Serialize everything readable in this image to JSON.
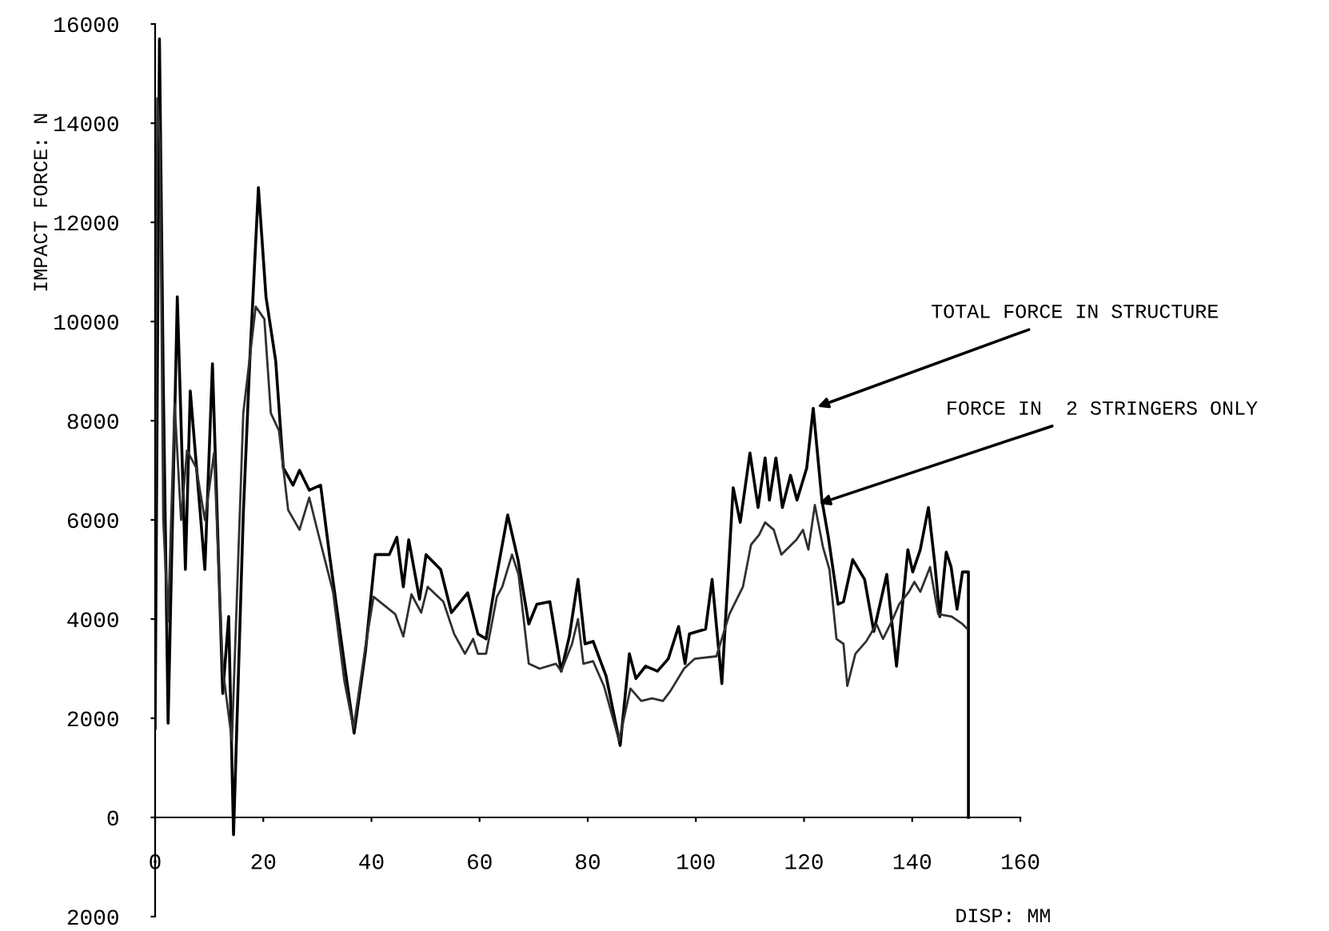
{
  "chart_data": {
    "type": "line",
    "xlabel": "DISP: MM",
    "ylabel": "IMPACT FORCE: N",
    "xlim": [
      0,
      160
    ],
    "ylim": [
      -2000,
      16000
    ],
    "xticks": [
      0,
      20,
      40,
      60,
      80,
      100,
      120,
      140,
      160
    ],
    "yticks": [
      {
        "value": -2000,
        "label": "2000"
      },
      0,
      2000,
      4000,
      6000,
      8000,
      10000,
      12000,
      14000,
      16000
    ],
    "legend": false,
    "marker": "none",
    "line_style": "solid",
    "series": [
      {
        "color": "#000000",
        "x": [
          0,
          0.8,
          1.5,
          2.4,
          4.1,
          5.6,
          6.5,
          9.2,
          10.6,
          12.5,
          13.6,
          14.5,
          16.3,
          17.5,
          19.1,
          20.5,
          22.3,
          23.7,
          25.5,
          26.7,
          28.5,
          30.6,
          32.3,
          35,
          36.8,
          38.9,
          40.7,
          43.3,
          44.7,
          45.9,
          46.9,
          48.9,
          50.1,
          52.8,
          54.8,
          57.8,
          59.7,
          61.2,
          62.7,
          65.2,
          67.1,
          69.1,
          70.6,
          73,
          75.1,
          76.6,
          78.2,
          79.5,
          81,
          83.4,
          86,
          87.7,
          88.9,
          90.7,
          92.9,
          94.9,
          96.8,
          98,
          98.8,
          101.8,
          103,
          104.8,
          106.9,
          108.2,
          110,
          111.5,
          112.8,
          113.6,
          114.8,
          116,
          117.5,
          118.7,
          120.5,
          121.7,
          123.3,
          124.5,
          126.3,
          127.3,
          129,
          131.2,
          132.9,
          135.3,
          137.1,
          139.2,
          140.1,
          141.5,
          143,
          144.2,
          145.1,
          146.3,
          147.2,
          148.3,
          149.3,
          150.4,
          150.4
        ],
        "values": [
          1800,
          15700,
          8850,
          1900,
          10500,
          5000,
          8600,
          5000,
          9150,
          2500,
          4050,
          -350,
          6100,
          9200,
          12700,
          10500,
          9200,
          7050,
          6700,
          7000,
          6600,
          6700,
          5250,
          3100,
          1700,
          3350,
          5300,
          5300,
          5650,
          4650,
          5600,
          4400,
          5300,
          5000,
          4130,
          4530,
          3700,
          3600,
          4600,
          6100,
          5200,
          3900,
          4300,
          4350,
          2950,
          3650,
          4800,
          3500,
          3550,
          2850,
          1450,
          3300,
          2800,
          3050,
          2950,
          3200,
          3850,
          3100,
          3700,
          3800,
          4800,
          2700,
          6650,
          5950,
          7350,
          6250,
          7250,
          6400,
          7250,
          6250,
          6900,
          6400,
          7050,
          8250,
          6400,
          5650,
          4300,
          4350,
          5200,
          4800,
          3750,
          4900,
          3050,
          5400,
          4950,
          5400,
          6250,
          5100,
          4050,
          5350,
          5050,
          4200,
          4950,
          4950,
          0
        ]
      },
      {
        "color": "#303030",
        "x": [
          0,
          0.4,
          0.9,
          1.5,
          2.4,
          3.6,
          4.8,
          5.9,
          7.6,
          9.2,
          10.9,
          12.5,
          14.2,
          16.3,
          18.6,
          20.2,
          21.4,
          22.9,
          24.6,
          26.7,
          28.5,
          30.1,
          32.9,
          35,
          36.7,
          38.9,
          40.4,
          44.4,
          45.9,
          47.4,
          49.2,
          50.4,
          53.3,
          55.3,
          57.3,
          58.8,
          59.7,
          61.2,
          63.2,
          64.2,
          66,
          67.2,
          69.1,
          71.1,
          74.1,
          75.1,
          77.1,
          78.2,
          79.2,
          81,
          83,
          85.8,
          87.9,
          89.9,
          91.9,
          93.9,
          95.3,
          97.8,
          99.8,
          103.8,
          106.2,
          108.7,
          110.2,
          111.7,
          112.8,
          114.4,
          115.8,
          118.6,
          119.8,
          120.8,
          122,
          123.5,
          124.7,
          126,
          127.3,
          128,
          129.5,
          131.5,
          133.4,
          134.6,
          136.2,
          137.6,
          139.4,
          140.4,
          141.5,
          143.3,
          144.8,
          147.3,
          149.3,
          150.2
        ],
        "values": [
          5500,
          14500,
          13600,
          6000,
          3950,
          8350,
          6000,
          7400,
          7050,
          6000,
          7350,
          3000,
          1550,
          8150,
          10300,
          10050,
          8150,
          7800,
          6200,
          5800,
          6450,
          5750,
          4550,
          2750,
          1800,
          3450,
          4450,
          4100,
          3650,
          4500,
          4130,
          4650,
          4350,
          3700,
          3300,
          3600,
          3300,
          3300,
          4450,
          4650,
          5300,
          4900,
          3100,
          3000,
          3100,
          2950,
          3500,
          4000,
          3100,
          3150,
          2650,
          1550,
          2600,
          2350,
          2400,
          2350,
          2550,
          3000,
          3200,
          3250,
          4100,
          4650,
          5500,
          5700,
          5950,
          5800,
          5300,
          5600,
          5800,
          5400,
          6300,
          5450,
          5000,
          3600,
          3500,
          2650,
          3300,
          3550,
          3900,
          3600,
          3950,
          4300,
          4550,
          4750,
          4550,
          5050,
          4100,
          4050,
          3900,
          3800
        ]
      }
    ],
    "annotations": [
      {
        "text": "TOTAL FORCE IN STRUCTURE",
        "x": 121.7,
        "y": 8250
      },
      {
        "text": "FORCE IN  2 STRINGERS ONLY",
        "x": 122,
        "y": 6300
      }
    ]
  }
}
